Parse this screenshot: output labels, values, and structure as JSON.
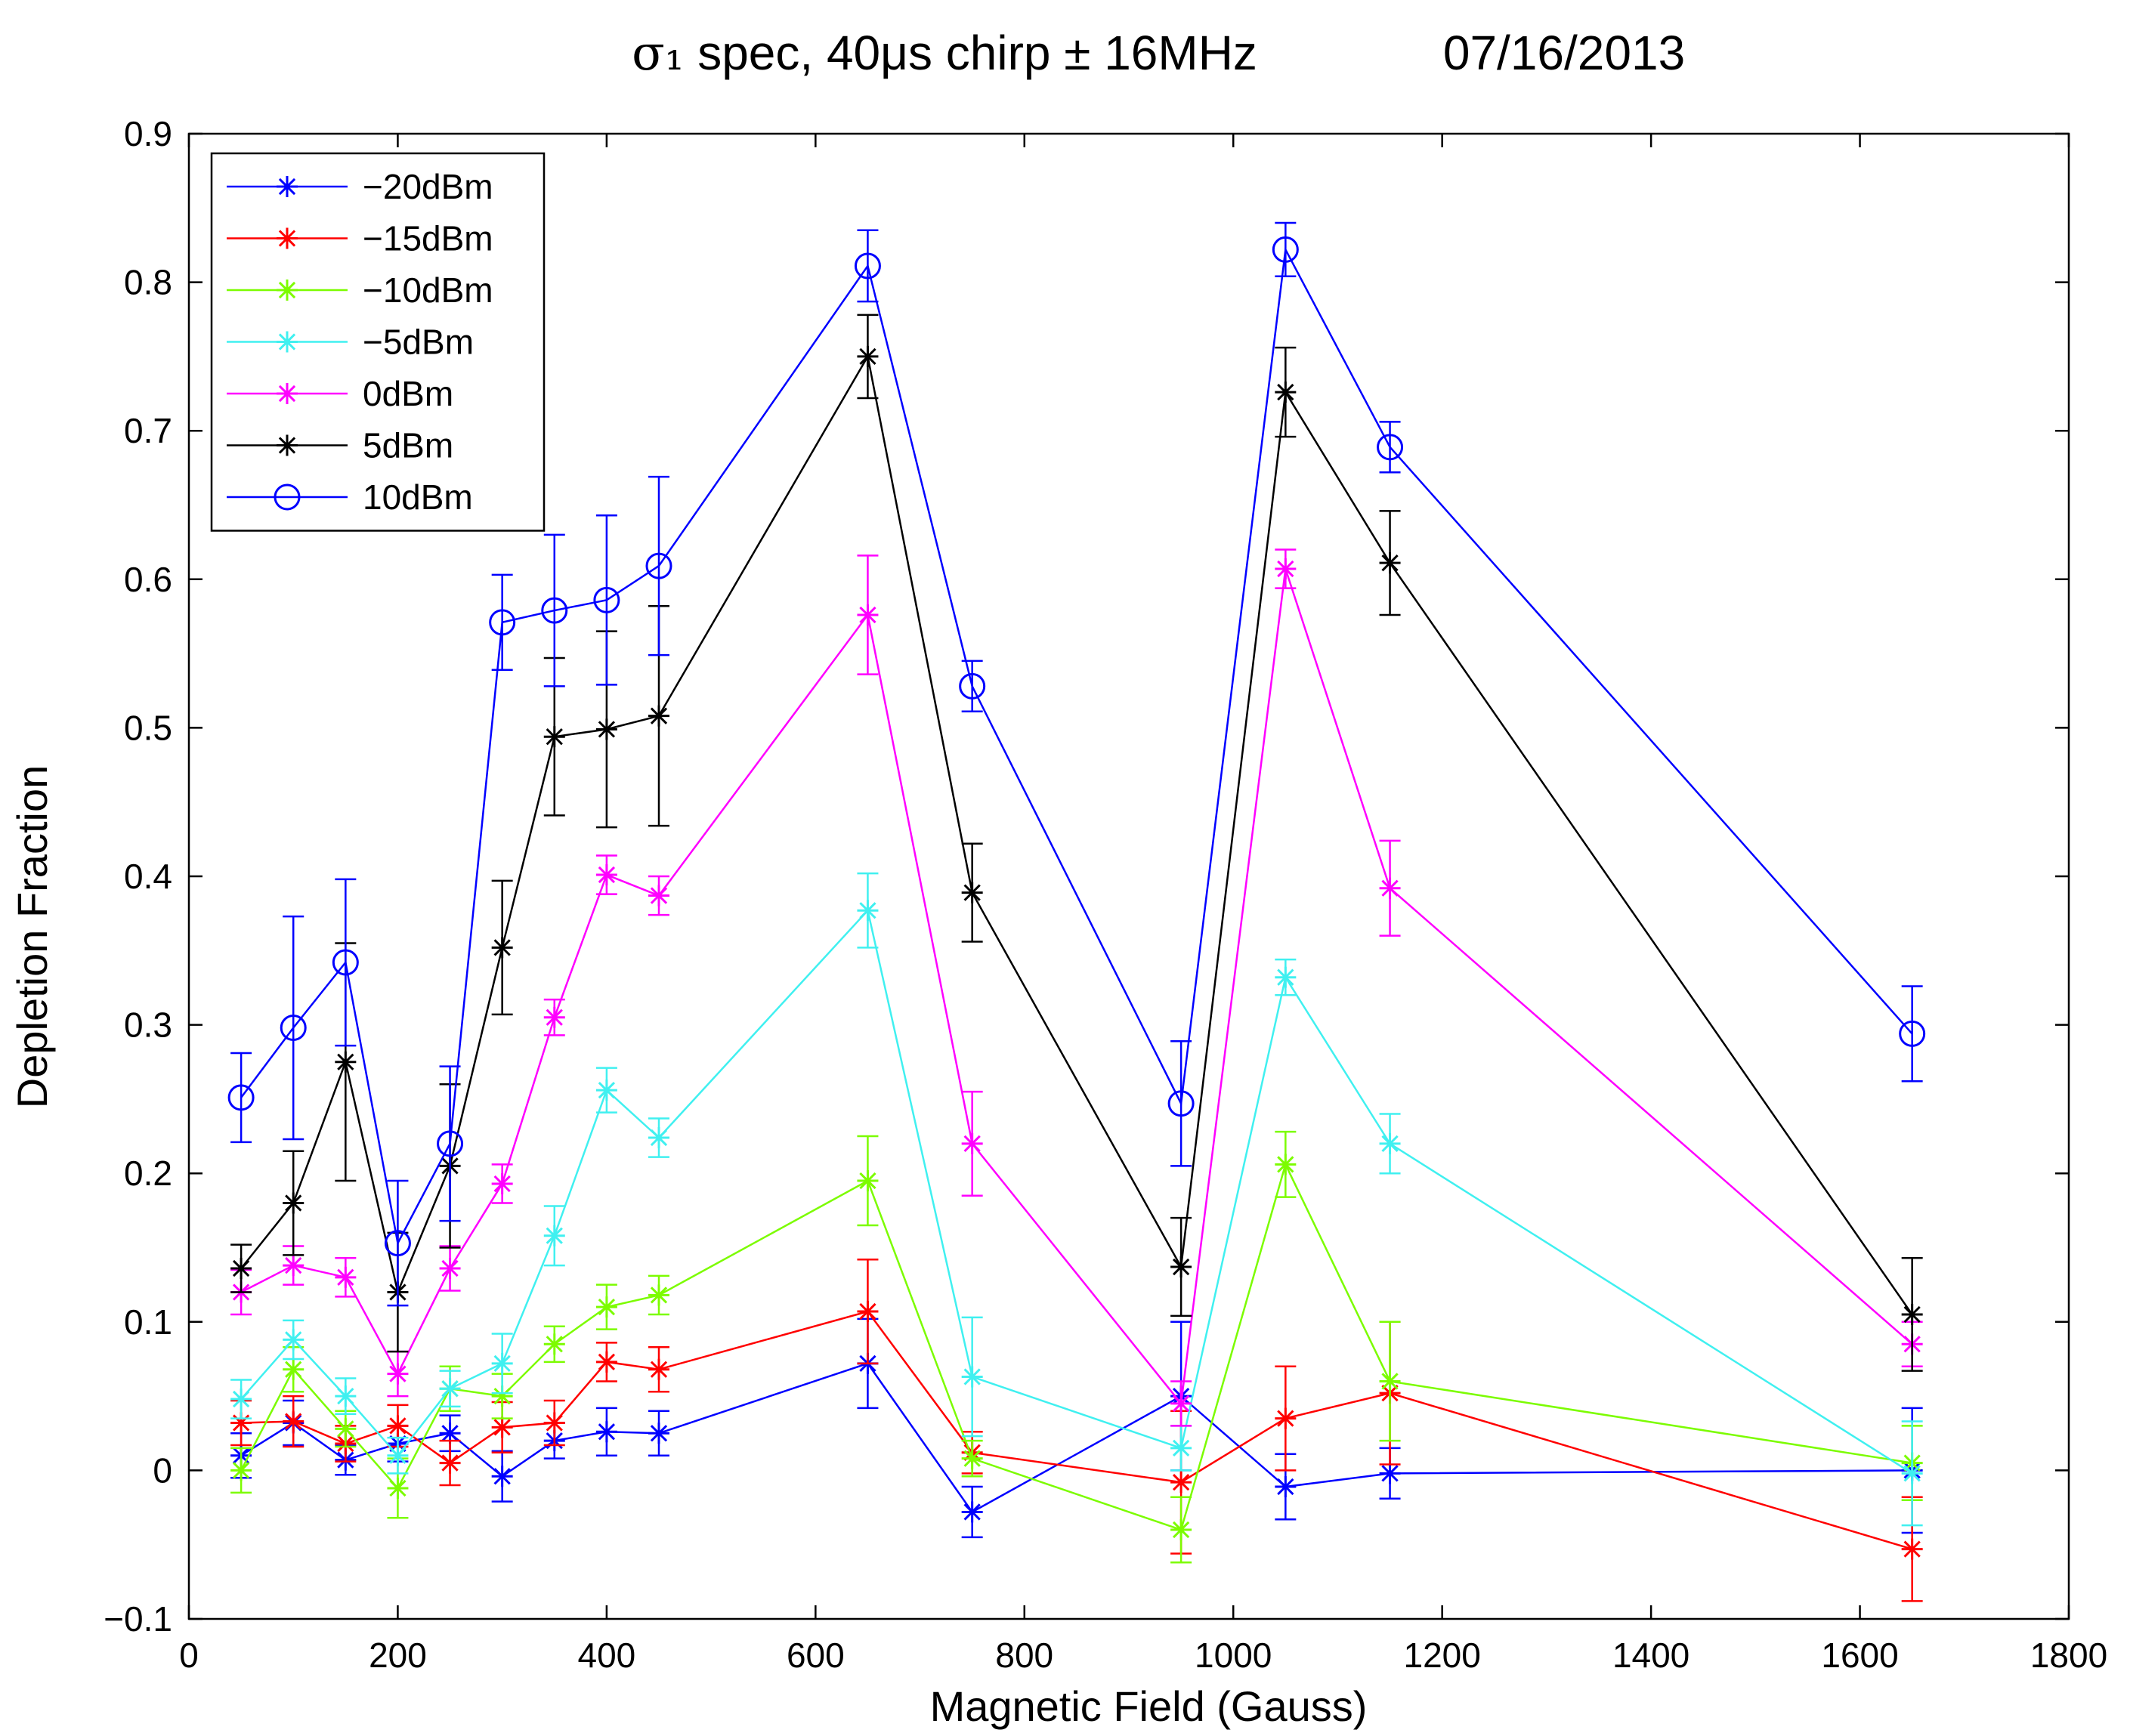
{
  "chart_data": {
    "type": "line",
    "title": "σ₁ spec, 40μs chirp ± 16MHz",
    "date": "07/16/2013",
    "xlabel": "Magnetic Field (Gauss)",
    "ylabel": "Depletion Fraction",
    "xlim": [
      0,
      1800
    ],
    "ylim": [
      -0.1,
      0.9
    ],
    "xticks": [
      "0",
      "200",
      "400",
      "600",
      "800",
      "1000",
      "1200",
      "1400",
      "1600",
      "1800"
    ],
    "yticks": [
      "-0.1",
      "0",
      "0.1",
      "0.2",
      "0.3",
      "0.4",
      "0.5",
      "0.6",
      "0.7",
      "0.8",
      "0.9"
    ],
    "grid": false,
    "legend_position": "top-left",
    "series": [
      {
        "name": "-20dBm",
        "color": "#0000ff",
        "marker": "star",
        "x": [
          50,
          100,
          150,
          200,
          250,
          300,
          350,
          400,
          450,
          650,
          750,
          950,
          1050,
          1150,
          1650
        ],
        "y": [
          0.01,
          0.032,
          0.007,
          0.018,
          0.025,
          -0.004,
          0.02,
          0.026,
          0.025,
          0.072,
          -0.028,
          0.05,
          -0.011,
          -0.002,
          0.0
        ],
        "err": [
          0.015,
          0.015,
          0.01,
          0.012,
          0.012,
          0.017,
          0.012,
          0.016,
          0.015,
          0.03,
          0.017,
          0.05,
          0.022,
          0.017,
          0.042
        ]
      },
      {
        "name": "-15dBm",
        "color": "#ff0000",
        "marker": "star",
        "x": [
          50,
          100,
          150,
          200,
          250,
          300,
          350,
          400,
          450,
          650,
          750,
          950,
          1050,
          1150,
          1650
        ],
        "y": [
          0.032,
          0.033,
          0.018,
          0.03,
          0.005,
          0.029,
          0.032,
          0.073,
          0.068,
          0.107,
          0.012,
          -0.008,
          0.035,
          0.052,
          -0.053
        ],
        "err": [
          0.015,
          0.017,
          0.012,
          0.014,
          0.015,
          0.017,
          0.015,
          0.013,
          0.015,
          0.035,
          0.014,
          0.048,
          0.035,
          0.048,
          0.035
        ]
      },
      {
        "name": "-10dBm",
        "color": "#7cfc00",
        "marker": "star",
        "x": [
          50,
          100,
          150,
          200,
          250,
          300,
          350,
          400,
          450,
          650,
          750,
          950,
          1050,
          1150,
          1650
        ],
        "y": [
          0.0,
          0.068,
          0.028,
          -0.012,
          0.055,
          0.05,
          0.085,
          0.11,
          0.118,
          0.195,
          0.008,
          -0.04,
          0.206,
          0.06,
          0.005
        ],
        "err": [
          0.015,
          0.015,
          0.012,
          0.02,
          0.015,
          0.015,
          0.012,
          0.015,
          0.013,
          0.03,
          0.012,
          0.022,
          0.022,
          0.04,
          0.025
        ]
      },
      {
        "name": "-5dBm",
        "color": "#40f0f0",
        "marker": "star",
        "x": [
          50,
          100,
          150,
          200,
          250,
          300,
          350,
          400,
          450,
          650,
          750,
          950,
          1050,
          1150,
          1650
        ],
        "y": [
          0.048,
          0.088,
          0.05,
          0.01,
          0.055,
          0.072,
          0.158,
          0.256,
          0.224,
          0.377,
          0.063,
          0.015,
          0.332,
          0.22,
          -0.002
        ],
        "err": [
          0.013,
          0.013,
          0.012,
          0.012,
          0.012,
          0.02,
          0.02,
          0.015,
          0.013,
          0.025,
          0.04,
          0.015,
          0.012,
          0.02,
          0.035
        ]
      },
      {
        "name": "0dBm",
        "color": "#ff00ff",
        "marker": "star",
        "x": [
          50,
          100,
          150,
          200,
          250,
          300,
          350,
          400,
          450,
          650,
          750,
          950,
          1050,
          1150,
          1650
        ],
        "y": [
          0.12,
          0.138,
          0.13,
          0.065,
          0.136,
          0.193,
          0.305,
          0.401,
          0.387,
          0.576,
          0.22,
          0.045,
          0.607,
          0.392,
          0.085
        ],
        "err": [
          0.015,
          0.013,
          0.013,
          0.015,
          0.015,
          0.013,
          0.012,
          0.013,
          0.013,
          0.04,
          0.035,
          0.015,
          0.013,
          0.032,
          0.015
        ]
      },
      {
        "name": "5dBm",
        "color": "#000000",
        "marker": "star",
        "x": [
          50,
          100,
          150,
          200,
          250,
          300,
          350,
          400,
          450,
          650,
          750,
          950,
          1050,
          1150,
          1650
        ],
        "y": [
          0.136,
          0.18,
          0.275,
          0.12,
          0.205,
          0.352,
          0.494,
          0.499,
          0.508,
          0.75,
          0.389,
          0.137,
          0.726,
          0.611,
          0.105
        ],
        "err": [
          0.016,
          0.035,
          0.08,
          0.04,
          0.055,
          0.045,
          0.053,
          0.066,
          0.074,
          0.028,
          0.033,
          0.033,
          0.03,
          0.035,
          0.038
        ]
      },
      {
        "name": "10dBm",
        "color": "#0000ff",
        "marker": "circle",
        "x": [
          50,
          100,
          150,
          200,
          250,
          300,
          350,
          400,
          450,
          650,
          750,
          950,
          1050,
          1150,
          1650
        ],
        "y": [
          0.251,
          0.298,
          0.342,
          0.153,
          0.22,
          0.571,
          0.579,
          0.586,
          0.609,
          0.811,
          0.528,
          0.247,
          0.822,
          0.689,
          0.294
        ],
        "err": [
          0.03,
          0.075,
          0.056,
          0.042,
          0.052,
          0.032,
          0.051,
          0.057,
          0.06,
          0.024,
          0.017,
          0.042,
          0.018,
          0.017,
          0.032
        ]
      }
    ]
  }
}
